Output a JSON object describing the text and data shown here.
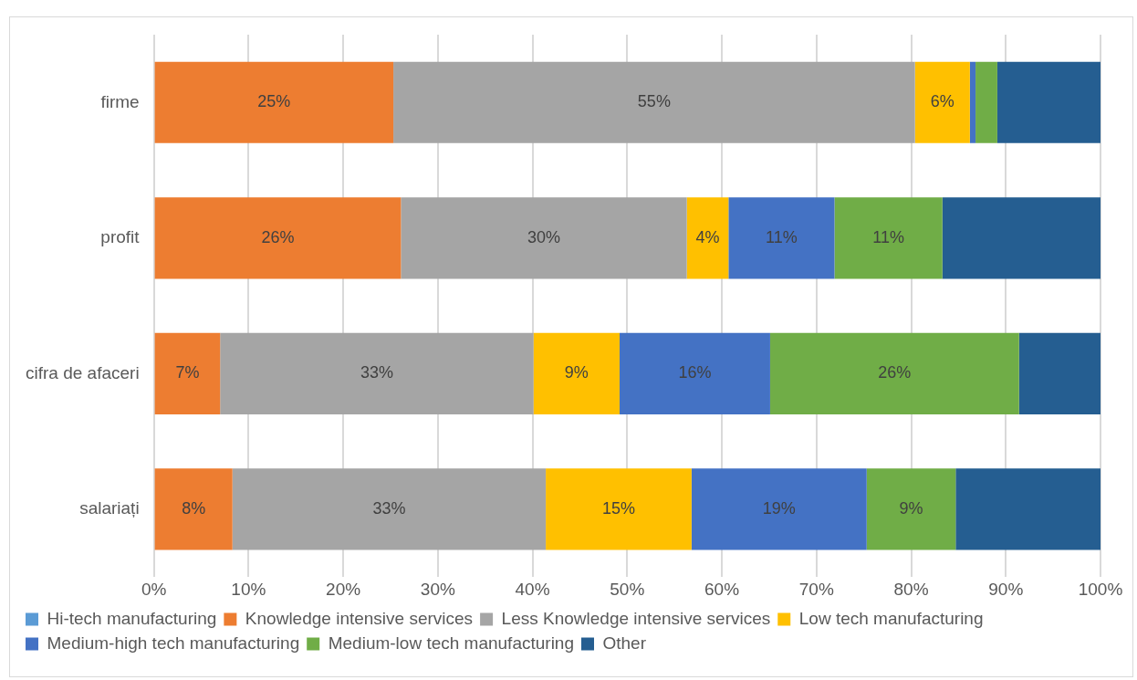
{
  "chart_data": {
    "type": "bar",
    "orientation": "horizontal",
    "stacked": true,
    "categories": [
      "firme",
      "profit",
      "cifra de afaceri",
      "salariați"
    ],
    "series": [
      {
        "name": "Hi-tech manufacturing",
        "color": "#5b9bd5",
        "values": [
          0,
          0,
          0,
          0
        ],
        "value_labels": [
          null,
          null,
          null,
          null
        ]
      },
      {
        "name": "Knowledge intensive services",
        "color": "#ed7d31",
        "values": [
          25.3,
          26.1,
          7.0,
          8.3
        ],
        "value_labels": [
          "25%",
          "26%",
          "7%",
          "8%"
        ]
      },
      {
        "name": "Less Knowledge intensive services",
        "color": "#a5a5a5",
        "values": [
          55.1,
          30.2,
          33.1,
          33.1
        ],
        "value_labels": [
          "55%",
          "30%",
          "33%",
          "33%"
        ]
      },
      {
        "name": "Low tech manufacturing",
        "color": "#ffc000",
        "values": [
          5.8,
          4.4,
          9.1,
          15.4
        ],
        "value_labels": [
          "6%",
          "4%",
          "9%",
          "15%"
        ]
      },
      {
        "name": "Medium-high tech manufacturing",
        "color": "#4472c4",
        "values": [
          0.6,
          11.2,
          15.9,
          18.5
        ],
        "value_labels": [
          null,
          "11%",
          "16%",
          "19%"
        ]
      },
      {
        "name": "Medium-low tech manufacturing",
        "color": "#70ad47",
        "values": [
          2.3,
          11.4,
          26.3,
          9.4
        ],
        "value_labels": [
          null,
          "11%",
          "26%",
          "9%"
        ]
      },
      {
        "name": "Other",
        "color": "#255e91",
        "values": [
          10.9,
          16.7,
          8.6,
          15.3
        ],
        "value_labels": [
          null,
          null,
          null,
          null
        ]
      }
    ],
    "xlim": [
      0,
      100
    ],
    "xticks": [
      {
        "value": 0,
        "label": "0%"
      },
      {
        "value": 10,
        "label": "10%"
      },
      {
        "value": 20,
        "label": "20%"
      },
      {
        "value": 30,
        "label": "30%"
      },
      {
        "value": 40,
        "label": "40%"
      },
      {
        "value": 50,
        "label": "50%"
      },
      {
        "value": 60,
        "label": "60%"
      },
      {
        "value": 70,
        "label": "70%"
      },
      {
        "value": 80,
        "label": "80%"
      },
      {
        "value": 90,
        "label": "90%"
      },
      {
        "value": 100,
        "label": "100%"
      }
    ],
    "grid": "x",
    "legend": "bottom"
  }
}
